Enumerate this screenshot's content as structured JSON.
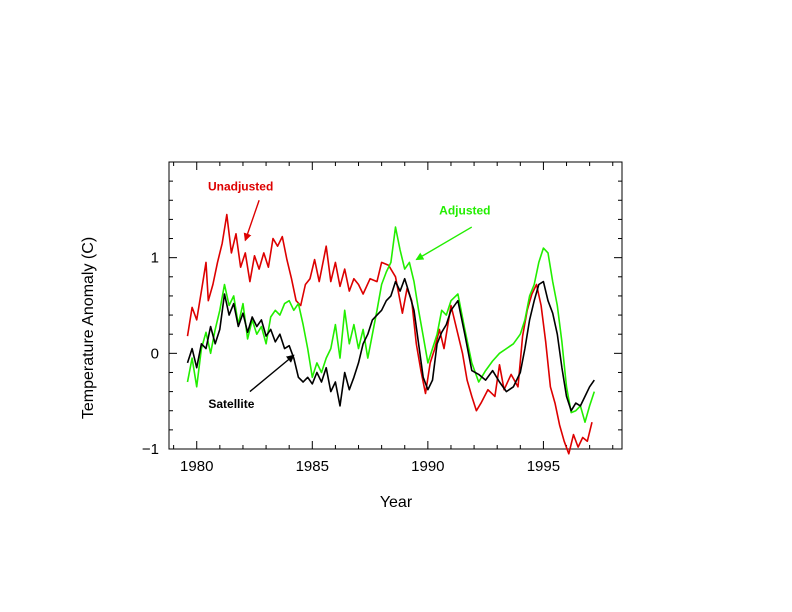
{
  "chart_data": {
    "type": "line",
    "xlabel": "Year",
    "ylabel": "Temperature Anomaly (C)",
    "xlim": [
      1978.8,
      1998.4
    ],
    "ylim": [
      -1,
      2
    ],
    "xticks": [
      1980,
      1985,
      1990,
      1995
    ],
    "xtick_labels": [
      "1980",
      "1985",
      "1990",
      "1995"
    ],
    "yticks": [
      -1,
      0,
      1
    ],
    "ytick_labels": [
      "−1",
      "0",
      "1"
    ],
    "grid": false,
    "series": [
      {
        "name": "Unadjusted",
        "color": "#dd0000",
        "x": [
          1979.6,
          1979.8,
          1980.0,
          1980.2,
          1980.4,
          1980.5,
          1980.7,
          1980.9,
          1981.1,
          1981.3,
          1981.5,
          1981.7,
          1981.9,
          1982.1,
          1982.3,
          1982.5,
          1982.7,
          1982.9,
          1983.1,
          1983.3,
          1983.5,
          1983.7,
          1983.9,
          1984.1,
          1984.3,
          1984.5,
          1984.7,
          1984.9,
          1985.1,
          1985.3,
          1985.6,
          1985.8,
          1986.0,
          1986.2,
          1986.4,
          1986.6,
          1986.8,
          1987.0,
          1987.2,
          1987.5,
          1987.8,
          1988.0,
          1988.3,
          1988.6,
          1988.9,
          1989.1,
          1989.3,
          1989.5,
          1989.7,
          1989.9,
          1990.1,
          1990.3,
          1990.5,
          1990.7,
          1991.0,
          1991.3,
          1991.5,
          1991.7,
          1991.9,
          1992.1,
          1992.3,
          1992.6,
          1992.9,
          1993.1,
          1993.3,
          1993.6,
          1993.9,
          1994.1,
          1994.3,
          1994.5,
          1994.7,
          1994.9,
          1995.1,
          1995.3,
          1995.5,
          1995.7,
          1995.9,
          1996.1,
          1996.3,
          1996.5,
          1996.7,
          1996.9,
          1997.1
        ],
        "y": [
          0.18,
          0.48,
          0.35,
          0.65,
          0.95,
          0.55,
          0.72,
          0.95,
          1.15,
          1.45,
          1.05,
          1.25,
          0.9,
          1.05,
          0.75,
          1.02,
          0.88,
          1.05,
          0.9,
          1.2,
          1.12,
          1.22,
          0.98,
          0.78,
          0.55,
          0.5,
          0.72,
          0.78,
          0.98,
          0.75,
          1.12,
          0.75,
          0.95,
          0.7,
          0.88,
          0.65,
          0.78,
          0.72,
          0.62,
          0.78,
          0.75,
          0.95,
          0.92,
          0.8,
          0.42,
          0.68,
          0.55,
          0.1,
          -0.18,
          -0.42,
          -0.1,
          0.05,
          0.25,
          0.05,
          0.5,
          0.2,
          0.0,
          -0.28,
          -0.45,
          -0.6,
          -0.52,
          -0.38,
          -0.45,
          -0.12,
          -0.38,
          -0.22,
          -0.35,
          0.18,
          0.45,
          0.62,
          0.72,
          0.5,
          0.12,
          -0.35,
          -0.52,
          -0.75,
          -0.92,
          -1.05,
          -0.85,
          -0.98,
          -0.88,
          -0.92,
          -0.72
        ]
      },
      {
        "name": "Adjusted",
        "color": "#22ee00",
        "x": [
          1979.6,
          1979.8,
          1980.0,
          1980.2,
          1980.4,
          1980.6,
          1980.8,
          1981.0,
          1981.2,
          1981.4,
          1981.6,
          1981.8,
          1982.0,
          1982.2,
          1982.4,
          1982.6,
          1982.8,
          1983.0,
          1983.2,
          1983.4,
          1983.6,
          1983.8,
          1984.0,
          1984.2,
          1984.4,
          1984.6,
          1984.8,
          1985.0,
          1985.2,
          1985.4,
          1985.6,
          1985.8,
          1986.0,
          1986.2,
          1986.4,
          1986.6,
          1986.8,
          1987.0,
          1987.2,
          1987.4,
          1987.6,
          1987.8,
          1988.0,
          1988.2,
          1988.4,
          1988.6,
          1988.8,
          1989.0,
          1989.2,
          1989.4,
          1989.6,
          1989.8,
          1990.0,
          1990.2,
          1990.4,
          1990.6,
          1990.8,
          1991.0,
          1991.3,
          1991.6,
          1991.9,
          1992.2,
          1992.5,
          1992.8,
          1993.1,
          1993.4,
          1993.7,
          1994.0,
          1994.2,
          1994.4,
          1994.6,
          1994.8,
          1995.0,
          1995.2,
          1995.4,
          1995.6,
          1995.8,
          1996.0,
          1996.2,
          1996.4,
          1996.6,
          1996.8,
          1997.0,
          1997.2
        ],
        "y": [
          -0.3,
          -0.05,
          -0.35,
          0.05,
          0.22,
          0.0,
          0.25,
          0.45,
          0.72,
          0.5,
          0.6,
          0.3,
          0.52,
          0.15,
          0.35,
          0.2,
          0.28,
          0.1,
          0.38,
          0.45,
          0.4,
          0.52,
          0.55,
          0.45,
          0.52,
          0.3,
          0.05,
          -0.25,
          -0.1,
          -0.2,
          -0.05,
          0.05,
          0.3,
          -0.05,
          0.45,
          0.1,
          0.3,
          0.05,
          0.25,
          -0.05,
          0.2,
          0.45,
          0.72,
          0.85,
          0.95,
          1.32,
          1.08,
          0.88,
          0.95,
          0.75,
          0.45,
          0.18,
          -0.1,
          0.05,
          0.2,
          0.45,
          0.4,
          0.55,
          0.62,
          0.25,
          -0.1,
          -0.3,
          -0.18,
          -0.08,
          0.0,
          0.05,
          0.1,
          0.2,
          0.35,
          0.6,
          0.72,
          0.95,
          1.1,
          1.05,
          0.75,
          0.5,
          0.12,
          -0.35,
          -0.62,
          -0.6,
          -0.55,
          -0.72,
          -0.55,
          -0.4
        ]
      },
      {
        "name": "Satellite",
        "color": "#000000",
        "x": [
          1979.6,
          1979.8,
          1980.0,
          1980.2,
          1980.4,
          1980.6,
          1980.8,
          1981.0,
          1981.2,
          1981.4,
          1981.6,
          1981.8,
          1982.0,
          1982.2,
          1982.4,
          1982.6,
          1982.8,
          1983.0,
          1983.2,
          1983.4,
          1983.6,
          1983.8,
          1984.0,
          1984.2,
          1984.4,
          1984.6,
          1984.8,
          1985.0,
          1985.2,
          1985.4,
          1985.6,
          1985.8,
          1986.0,
          1986.2,
          1986.4,
          1986.6,
          1986.8,
          1987.0,
          1987.2,
          1987.4,
          1987.6,
          1987.8,
          1988.0,
          1988.2,
          1988.4,
          1988.6,
          1988.8,
          1989.0,
          1989.2,
          1989.4,
          1989.6,
          1989.8,
          1990.0,
          1990.2,
          1990.4,
          1990.6,
          1990.8,
          1991.0,
          1991.3,
          1991.6,
          1991.9,
          1992.2,
          1992.5,
          1992.8,
          1993.1,
          1993.4,
          1993.7,
          1994.0,
          1994.2,
          1994.4,
          1994.6,
          1994.8,
          1995.0,
          1995.2,
          1995.4,
          1995.6,
          1995.8,
          1996.0,
          1996.2,
          1996.4,
          1996.6,
          1996.8,
          1997.0,
          1997.2
        ],
        "y": [
          -0.1,
          0.05,
          -0.15,
          0.1,
          0.05,
          0.28,
          0.1,
          0.25,
          0.62,
          0.4,
          0.52,
          0.28,
          0.42,
          0.22,
          0.38,
          0.28,
          0.35,
          0.18,
          0.25,
          0.12,
          0.2,
          0.05,
          0.08,
          -0.05,
          -0.25,
          -0.3,
          -0.25,
          -0.32,
          -0.2,
          -0.3,
          -0.15,
          -0.4,
          -0.3,
          -0.55,
          -0.2,
          -0.38,
          -0.25,
          -0.1,
          0.1,
          0.2,
          0.35,
          0.4,
          0.45,
          0.55,
          0.6,
          0.75,
          0.65,
          0.78,
          0.62,
          0.45,
          0.1,
          -0.25,
          -0.38,
          -0.28,
          0.1,
          0.22,
          0.3,
          0.45,
          0.55,
          0.2,
          -0.18,
          -0.22,
          -0.28,
          -0.18,
          -0.3,
          -0.4,
          -0.35,
          -0.2,
          0.05,
          0.35,
          0.55,
          0.72,
          0.75,
          0.55,
          0.42,
          0.2,
          -0.15,
          -0.45,
          -0.6,
          -0.52,
          -0.55,
          -0.45,
          -0.35,
          -0.28
        ]
      }
    ],
    "annotations": [
      {
        "text": "Unadjusted",
        "color": "#dd0000",
        "text_at": [
          1981.9,
          1.7
        ],
        "arrow_from": [
          1982.7,
          1.6
        ],
        "arrow_to": [
          1982.1,
          1.18
        ]
      },
      {
        "text": "Adjusted",
        "color": "#22ee00",
        "text_at": [
          1991.6,
          1.45
        ],
        "arrow_from": [
          1991.9,
          1.32
        ],
        "arrow_to": [
          1989.5,
          0.98
        ]
      },
      {
        "text": "Satellite",
        "color": "#000000",
        "text_at": [
          1981.5,
          -0.57
        ],
        "arrow_from": [
          1982.3,
          -0.4
        ],
        "arrow_to": [
          1984.2,
          -0.02
        ]
      }
    ]
  }
}
